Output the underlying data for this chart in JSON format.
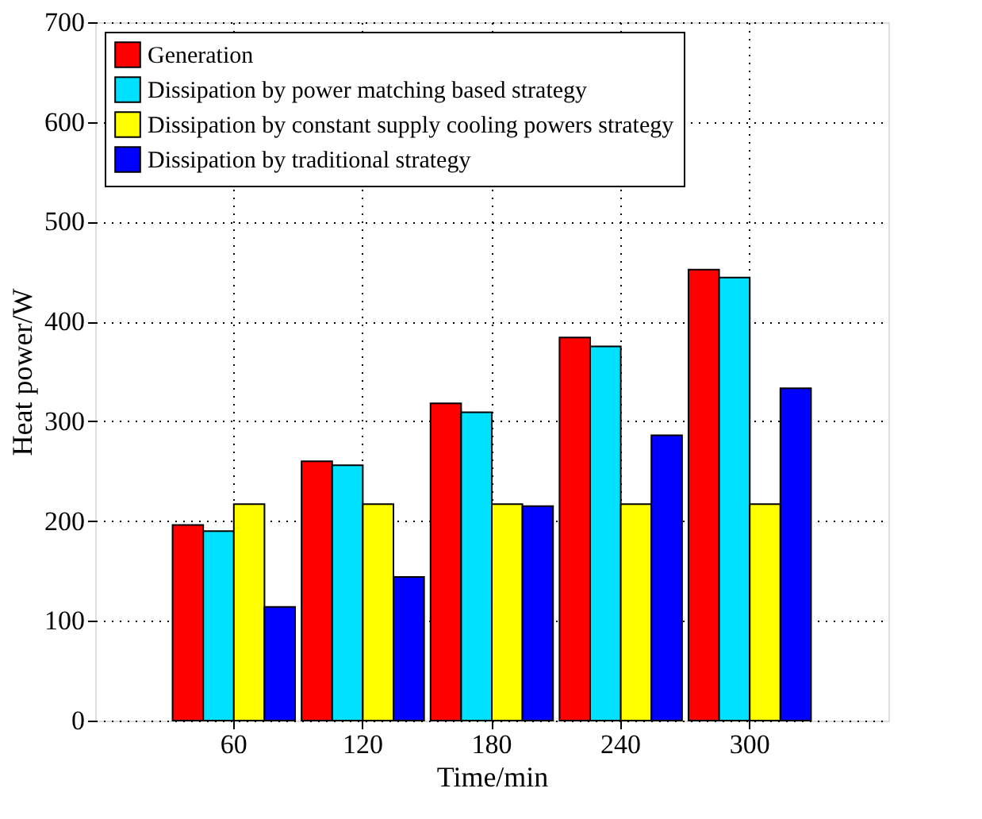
{
  "chart_data": {
    "type": "bar",
    "xlabel": "Time/min",
    "ylabel": "Heat power/W",
    "categories": [
      "60",
      "120",
      "180",
      "240",
      "300"
    ],
    "series": [
      {
        "name": "Generation",
        "color": "#ff0000",
        "values": [
          196,
          260,
          318,
          384,
          452
        ]
      },
      {
        "name": "Dissipation by power matching based strategy",
        "color": "#00e0ff",
        "values": [
          190,
          256,
          309,
          375,
          444
        ]
      },
      {
        "name": "Dissipation by constant supply cooling powers strategy",
        "color": "#ffff00",
        "values": [
          217,
          217,
          217,
          217,
          217
        ]
      },
      {
        "name": "Dissipation by traditional strategy",
        "color": "#0000ff",
        "values": [
          114,
          144,
          215,
          286,
          333
        ]
      }
    ],
    "ylim": [
      0,
      700
    ],
    "yticks": [
      0,
      100,
      200,
      300,
      400,
      500,
      600,
      700
    ],
    "grid": true,
    "legend": "top left"
  }
}
